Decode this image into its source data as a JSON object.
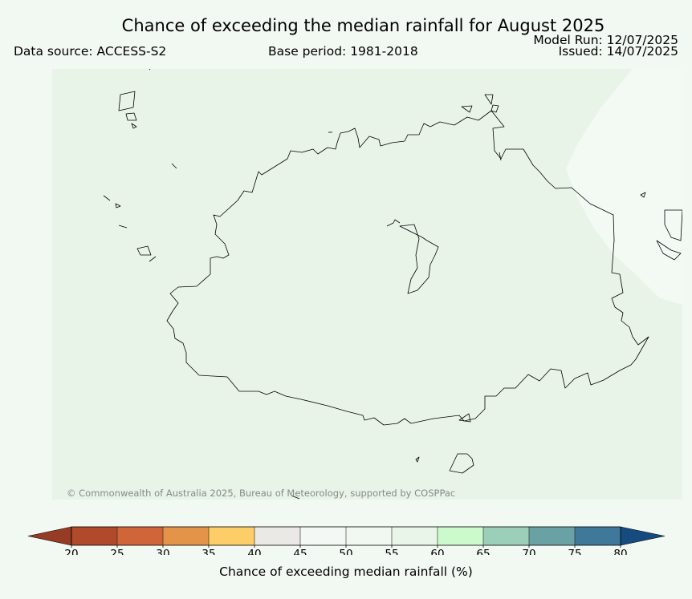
{
  "header": {
    "title": "Chance of exceeding the median rainfall for August 2025",
    "data_source": "Data source: ACCESS-S2",
    "base_period": "Base period: 1981-2018",
    "model_run": "Model Run: 12/07/2025",
    "issued": "Issued: 14/07/2025"
  },
  "map": {
    "credit": "© Commonwealth of Australia 2025, Bureau of Meteorology, supported by COSPPac",
    "fill_color": "#e9f4e9",
    "high_zone_color": "#f3f9f3"
  },
  "colorbar": {
    "label": "Chance of exceeding median rainfall (%)",
    "ticks": [
      "20",
      "25",
      "30",
      "35",
      "40",
      "45",
      "50",
      "55",
      "60",
      "65",
      "70",
      "75",
      "80"
    ],
    "bins": [
      {
        "from": 20,
        "to": 25,
        "color": "#b04a2a"
      },
      {
        "from": 25,
        "to": 30,
        "color": "#cf6538"
      },
      {
        "from": 30,
        "to": 35,
        "color": "#e49449"
      },
      {
        "from": 35,
        "to": 40,
        "color": "#fdcd67"
      },
      {
        "from": 40,
        "to": 45,
        "color": "#ebe9e5"
      },
      {
        "from": 45,
        "to": 50,
        "color": "#f4f8f4"
      },
      {
        "from": 50,
        "to": 55,
        "color": "#f1f8f1"
      },
      {
        "from": 55,
        "to": 60,
        "color": "#e9f5e9"
      },
      {
        "from": 60,
        "to": 65,
        "color": "#ccfacc"
      },
      {
        "from": 65,
        "to": 70,
        "color": "#9bcfb9"
      },
      {
        "from": 70,
        "to": 75,
        "color": "#6aa1a5"
      },
      {
        "from": 75,
        "to": 80,
        "color": "#3f7899"
      }
    ],
    "under_color": "#963c24",
    "over_color": "#164b80"
  }
}
